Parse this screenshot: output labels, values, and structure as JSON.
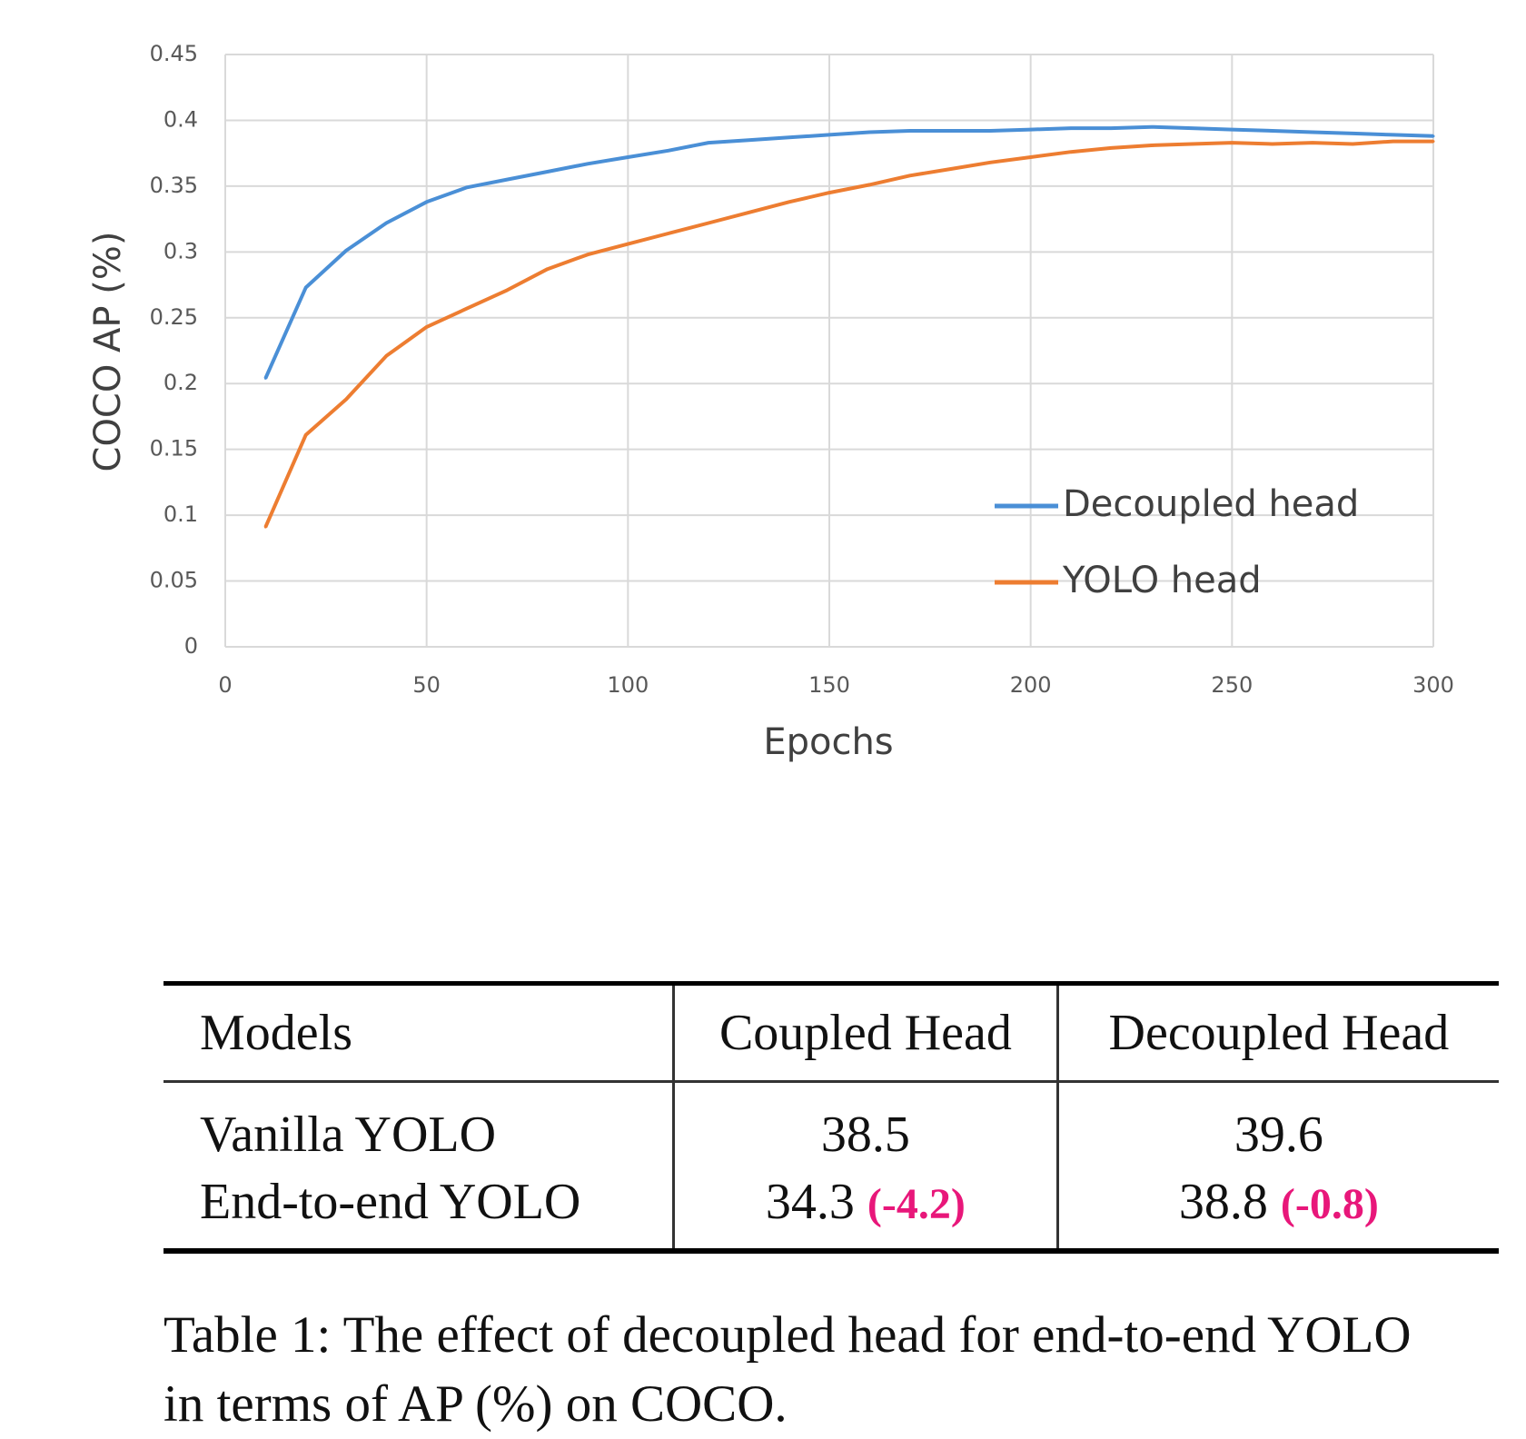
{
  "chart_data": {
    "type": "line",
    "xlabel": "Epochs",
    "ylabel": "COCO AP (%)",
    "xlim": [
      0,
      300
    ],
    "ylim": [
      0,
      0.45
    ],
    "xticks": [
      0,
      50,
      100,
      150,
      200,
      250,
      300
    ],
    "xtick_labels": [
      "0",
      "50",
      "100",
      "150",
      "200",
      "250",
      "300"
    ],
    "yticks": [
      0,
      0.05,
      0.1,
      0.15,
      0.2,
      0.25,
      0.3,
      0.35,
      0.4,
      0.45
    ],
    "ytick_labels": [
      "0",
      "0.05",
      "0.1",
      "0.15",
      "0.2",
      "0.25",
      "0.3",
      "0.35",
      "0.4",
      "0.45"
    ],
    "grid": true,
    "legend_position": "bottom-right",
    "x": [
      10,
      20,
      30,
      40,
      50,
      60,
      70,
      80,
      90,
      100,
      110,
      120,
      130,
      140,
      150,
      160,
      170,
      180,
      190,
      200,
      210,
      220,
      230,
      240,
      250,
      260,
      270,
      280,
      290,
      300
    ],
    "series": [
      {
        "name": "Decoupled head",
        "color": "#4a8fd6",
        "values": [
          0.204,
          0.273,
          0.301,
          0.322,
          0.338,
          0.349,
          0.355,
          0.361,
          0.367,
          0.372,
          0.377,
          0.383,
          0.385,
          0.387,
          0.389,
          0.391,
          0.392,
          0.392,
          0.392,
          0.393,
          0.394,
          0.394,
          0.395,
          0.394,
          0.393,
          0.392,
          0.391,
          0.39,
          0.389,
          0.388
        ]
      },
      {
        "name": "YOLO head",
        "color": "#ed7d31",
        "values": [
          0.091,
          0.161,
          0.188,
          0.221,
          0.243,
          0.257,
          0.271,
          0.287,
          0.298,
          0.306,
          0.314,
          0.322,
          0.33,
          0.338,
          0.345,
          0.351,
          0.358,
          0.363,
          0.368,
          0.372,
          0.376,
          0.379,
          0.381,
          0.382,
          0.383,
          0.382,
          0.383,
          0.382,
          0.384,
          0.384
        ]
      }
    ]
  },
  "table": {
    "headers": [
      "Models",
      "Coupled Head",
      "Decoupled Head"
    ],
    "rows": [
      {
        "model": "Vanilla YOLO",
        "coupled": "38.5",
        "coupled_delta": "",
        "decoupled": "39.6",
        "decoupled_delta": ""
      },
      {
        "model": "End-to-end YOLO",
        "coupled": "34.3",
        "coupled_delta": "(-4.2)",
        "decoupled": "38.8",
        "decoupled_delta": "(-0.8)"
      }
    ],
    "delta_color": "#e8177a"
  },
  "caption": {
    "line1": "Table 1: The effect of decoupled head for end-to-end YOLO",
    "line2": "in terms of AP (%) on COCO."
  }
}
